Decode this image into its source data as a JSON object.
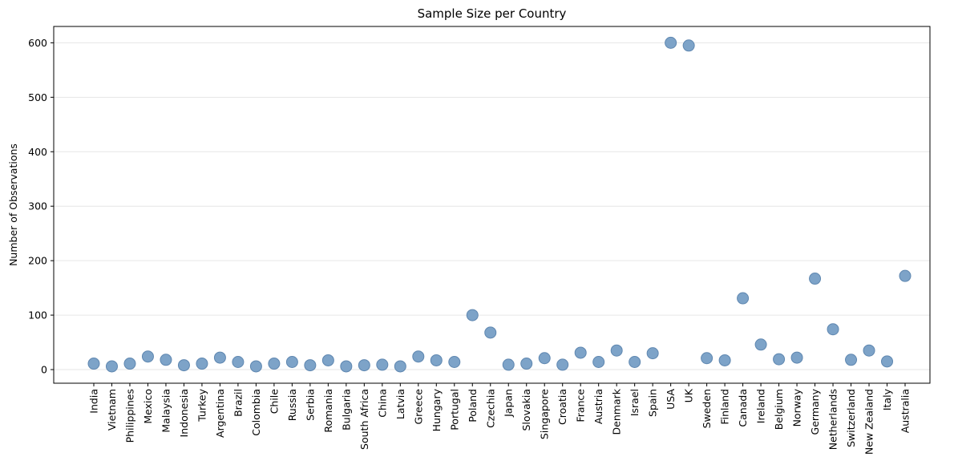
{
  "chart_data": {
    "type": "scatter",
    "title": "Sample Size per Country",
    "xlabel": "",
    "ylabel": "Number of Observations",
    "ylim": [
      -25,
      630
    ],
    "yticks": [
      0,
      100,
      200,
      300,
      400,
      500,
      600
    ],
    "grid": "horizontal",
    "marker_color": "#7da3c8",
    "marker_edge_color": "#5f87b0",
    "categories": [
      "India",
      "Vietnam",
      "Philippines",
      "Mexico",
      "Malaysia",
      "Indonesia",
      "Turkey",
      "Argentina",
      "Brazil",
      "Colombia",
      "Chile",
      "Russia",
      "Serbia",
      "Romania",
      "Bulgaria",
      "South Africa",
      "China",
      "Latvia",
      "Greece",
      "Hungary",
      "Portugal",
      "Poland",
      "Czechia",
      "Japan",
      "Slovakia",
      "Singapore",
      "Croatia",
      "France",
      "Austria",
      "Denmark",
      "Israel",
      "Spain",
      "USA",
      "UK",
      "Sweden",
      "Finland",
      "Canada",
      "Ireland",
      "Belgium",
      "Norway",
      "Germany",
      "Netherlands",
      "Switzerland",
      "New Zealand",
      "Italy",
      "Australia"
    ],
    "values": [
      11,
      6,
      11,
      24,
      18,
      8,
      11,
      22,
      14,
      6,
      11,
      14,
      8,
      17,
      6,
      8,
      9,
      6,
      24,
      17,
      14,
      100,
      68,
      9,
      11,
      21,
      9,
      31,
      14,
      35,
      14,
      30,
      600,
      595,
      21,
      17,
      131,
      46,
      19,
      22,
      167,
      74,
      18,
      35,
      15,
      172
    ]
  }
}
